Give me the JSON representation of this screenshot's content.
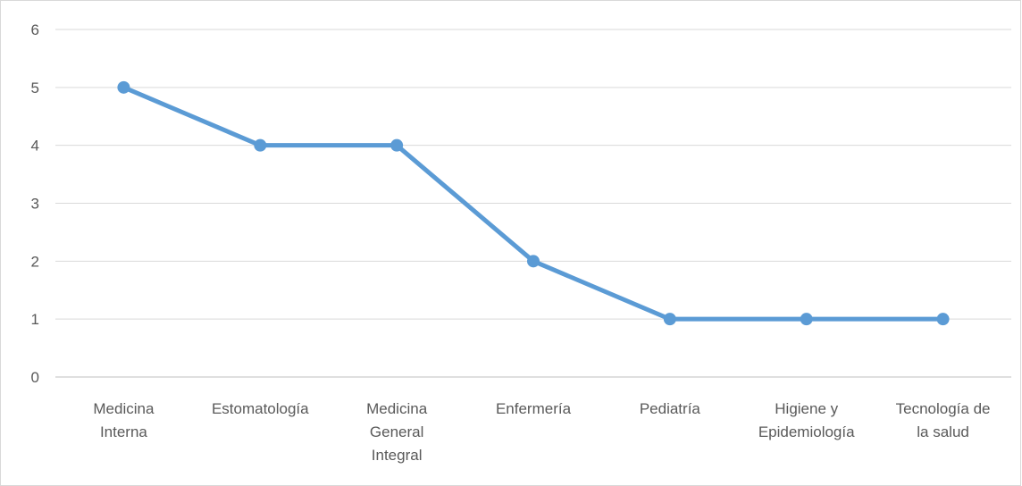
{
  "chart_data": {
    "type": "line",
    "title": "",
    "xlabel": "",
    "ylabel": "",
    "categories": [
      [
        "Medicina",
        "Interna"
      ],
      [
        "Estomatología"
      ],
      [
        "Medicina",
        "General",
        "Integral"
      ],
      [
        "Enfermería"
      ],
      [
        "Pediatría"
      ],
      [
        "Higiene y",
        "Epidemiología"
      ],
      [
        "Tecnología de",
        "la salud"
      ]
    ],
    "series": [
      {
        "values": [
          5,
          4,
          4,
          2,
          1,
          1,
          1
        ]
      }
    ],
    "ylim": [
      0,
      6
    ],
    "yticks": [
      "0",
      "1",
      "2",
      "3",
      "4",
      "5",
      "6"
    ],
    "grid": true,
    "legend": "none",
    "colors": {
      "line": "#5b9bd5",
      "grid": "#d9d9d9",
      "axis": "#bfbfbf",
      "text": "#595959",
      "border": "#d9d9d9"
    }
  }
}
